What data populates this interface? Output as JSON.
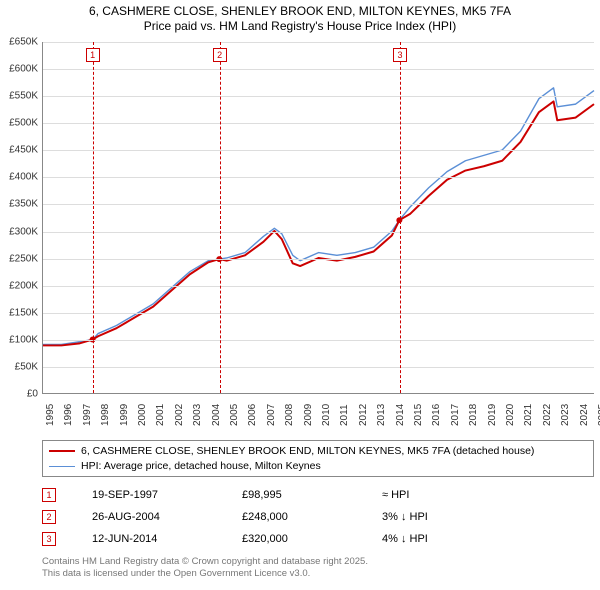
{
  "title": {
    "line1": "6, CASHMERE CLOSE, SHENLEY BROOK END, MILTON KEYNES, MK5 7FA",
    "line2": "Price paid vs. HM Land Registry's House Price Index (HPI)"
  },
  "chart": {
    "type": "line",
    "background_color": "#ffffff",
    "grid_color": "#dddddd",
    "axis_color": "#888888",
    "ylim": [
      0,
      650000
    ],
    "ytick_step": 50000,
    "ytick_labels": [
      "£0",
      "£50K",
      "£100K",
      "£150K",
      "£200K",
      "£250K",
      "£300K",
      "£350K",
      "£400K",
      "£450K",
      "£500K",
      "£550K",
      "£600K",
      "£650K"
    ],
    "xlim": [
      1995,
      2025
    ],
    "xtick_years": [
      1995,
      1996,
      1997,
      1998,
      1999,
      2000,
      2001,
      2002,
      2003,
      2004,
      2005,
      2006,
      2007,
      2008,
      2009,
      2010,
      2011,
      2012,
      2013,
      2014,
      2015,
      2016,
      2017,
      2018,
      2019,
      2020,
      2021,
      2022,
      2023,
      2024,
      2025
    ],
    "series": [
      {
        "name": "hpi",
        "color": "#5b8fd6",
        "width": 1.4,
        "points": [
          [
            1995,
            90000
          ],
          [
            1996,
            90000
          ],
          [
            1997,
            95000
          ],
          [
            1997.7,
            99000
          ],
          [
            1998,
            110000
          ],
          [
            1999,
            125000
          ],
          [
            2000,
            145000
          ],
          [
            2001,
            165000
          ],
          [
            2002,
            195000
          ],
          [
            2003,
            225000
          ],
          [
            2004,
            245000
          ],
          [
            2004.6,
            248000
          ],
          [
            2005,
            250000
          ],
          [
            2006,
            260000
          ],
          [
            2007,
            290000
          ],
          [
            2007.6,
            305000
          ],
          [
            2008,
            295000
          ],
          [
            2008.6,
            255000
          ],
          [
            2009,
            245000
          ],
          [
            2010,
            260000
          ],
          [
            2011,
            255000
          ],
          [
            2012,
            260000
          ],
          [
            2013,
            270000
          ],
          [
            2014,
            300000
          ],
          [
            2014.4,
            320000
          ],
          [
            2015,
            345000
          ],
          [
            2016,
            380000
          ],
          [
            2017,
            410000
          ],
          [
            2018,
            430000
          ],
          [
            2019,
            440000
          ],
          [
            2020,
            450000
          ],
          [
            2021,
            485000
          ],
          [
            2022,
            545000
          ],
          [
            2022.8,
            565000
          ],
          [
            2023,
            530000
          ],
          [
            2024,
            535000
          ],
          [
            2025,
            560000
          ]
        ]
      },
      {
        "name": "price-paid",
        "color": "#cc0000",
        "width": 2,
        "points": [
          [
            1995,
            88000
          ],
          [
            1996,
            88000
          ],
          [
            1997,
            92000
          ],
          [
            1997.7,
            99000
          ],
          [
            1998,
            105000
          ],
          [
            1999,
            120000
          ],
          [
            2000,
            140000
          ],
          [
            2001,
            160000
          ],
          [
            2002,
            190000
          ],
          [
            2003,
            220000
          ],
          [
            2004,
            242000
          ],
          [
            2004.6,
            248000
          ],
          [
            2005,
            245000
          ],
          [
            2006,
            255000
          ],
          [
            2007,
            280000
          ],
          [
            2007.6,
            300000
          ],
          [
            2008,
            285000
          ],
          [
            2008.6,
            240000
          ],
          [
            2009,
            235000
          ],
          [
            2010,
            250000
          ],
          [
            2011,
            245000
          ],
          [
            2012,
            252000
          ],
          [
            2013,
            262000
          ],
          [
            2014,
            292000
          ],
          [
            2014.4,
            320000
          ],
          [
            2015,
            332000
          ],
          [
            2016,
            365000
          ],
          [
            2017,
            395000
          ],
          [
            2018,
            412000
          ],
          [
            2019,
            420000
          ],
          [
            2020,
            430000
          ],
          [
            2021,
            465000
          ],
          [
            2022,
            520000
          ],
          [
            2022.8,
            540000
          ],
          [
            2023,
            505000
          ],
          [
            2024,
            510000
          ],
          [
            2025,
            535000
          ]
        ]
      }
    ],
    "markers": [
      {
        "n": "1",
        "x": 1997.7,
        "y": 99000
      },
      {
        "n": "2",
        "x": 2004.6,
        "y": 248000
      },
      {
        "n": "3",
        "x": 2014.4,
        "y": 320000
      }
    ]
  },
  "legend": {
    "items": [
      {
        "color": "#cc0000",
        "width": 2,
        "label": "6, CASHMERE CLOSE, SHENLEY BROOK END, MILTON KEYNES, MK5 7FA (detached house)"
      },
      {
        "color": "#5b8fd6",
        "width": 1.4,
        "label": "HPI: Average price, detached house, Milton Keynes"
      }
    ]
  },
  "sales": [
    {
      "n": "1",
      "date": "19-SEP-1997",
      "price": "£98,995",
      "diff": "≈ HPI"
    },
    {
      "n": "2",
      "date": "26-AUG-2004",
      "price": "£248,000",
      "diff": "3% ↓ HPI"
    },
    {
      "n": "3",
      "date": "12-JUN-2014",
      "price": "£320,000",
      "diff": "4% ↓ HPI"
    }
  ],
  "footer": {
    "line1": "Contains HM Land Registry data © Crown copyright and database right 2025.",
    "line2": "This data is licensed under the Open Government Licence v3.0."
  }
}
